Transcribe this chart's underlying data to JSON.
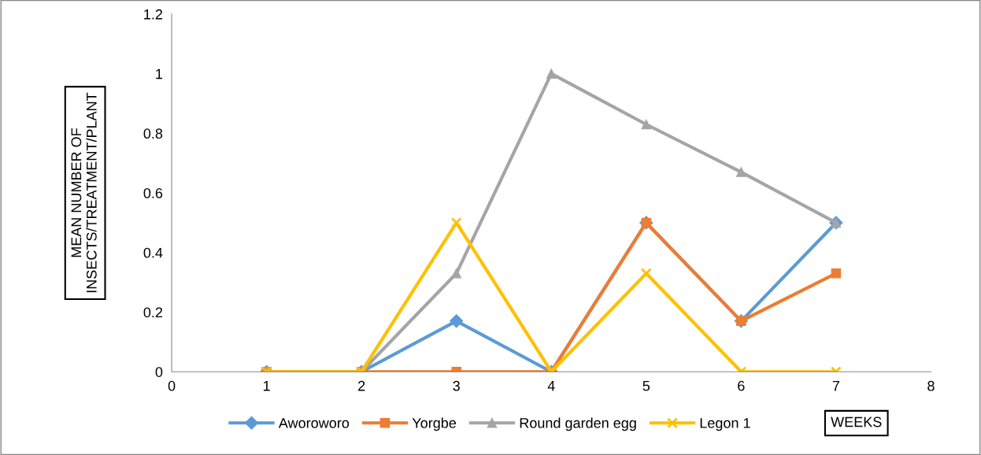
{
  "chart_data": {
    "type": "line",
    "xlabel": "WEEKS",
    "ylabel": "MEAN NUMBER OF\nINSECTS/TREATMENT/PLANT",
    "x": [
      1,
      2,
      3,
      4,
      5,
      6,
      7
    ],
    "series": [
      {
        "name": "Aworoworo",
        "color": "#5b9bd5",
        "marker": "diamond",
        "values": [
          0,
          0,
          0.17,
          0,
          0.5,
          0.17,
          0.5
        ]
      },
      {
        "name": "Yorgbe",
        "color": "#ed7d31",
        "marker": "square",
        "values": [
          0,
          0,
          0,
          0,
          0.5,
          0.17,
          0.33
        ]
      },
      {
        "name": "Round garden egg",
        "color": "#a5a5a5",
        "marker": "triangle",
        "values": [
          0,
          0,
          0.33,
          1,
          0.83,
          0.67,
          0.5
        ]
      },
      {
        "name": "Legon 1",
        "color": "#ffc000",
        "marker": "cross",
        "values": [
          0,
          0,
          0.5,
          0,
          0.33,
          0,
          0
        ]
      }
    ],
    "xlim": [
      0,
      8
    ],
    "xticks": [
      0,
      1,
      2,
      3,
      4,
      5,
      6,
      7,
      8
    ],
    "ylim": [
      0,
      1.2
    ],
    "yticks": [
      0,
      0.2,
      0.4,
      0.6,
      0.8,
      1,
      1.2
    ],
    "grid": false,
    "legend": "bottom",
    "line_style": "solid"
  }
}
